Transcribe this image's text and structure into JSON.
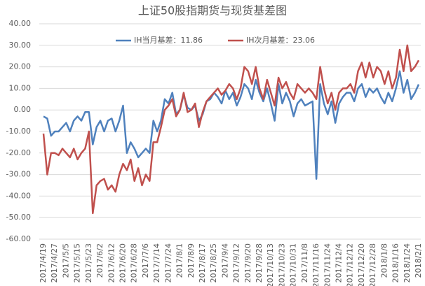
{
  "chart_data": {
    "type": "line",
    "title": "上证50股指期货与现货基差图",
    "categories": [
      "2017/4/19",
      null,
      null,
      "2017/4/27",
      null,
      null,
      "2017/5/5",
      null,
      null,
      "2017/5/15",
      null,
      null,
      "2017/5/23",
      null,
      null,
      "2017/6/2",
      null,
      null,
      "2017/6/12",
      null,
      null,
      "2017/6/20",
      null,
      null,
      "2017/6/28",
      null,
      null,
      "2017/7/6",
      null,
      null,
      "2017/7/14",
      null,
      null,
      "2017/7/24",
      null,
      null,
      "2017/8/1",
      null,
      null,
      "2017/8/9",
      null,
      null,
      "2017/8/17",
      null,
      null,
      "2017/8/25",
      null,
      null,
      "2017/9/4",
      null,
      null,
      "2017/9/12",
      null,
      null,
      "2017/9/20",
      null,
      null,
      "2017/9/28",
      null,
      null,
      "2017/10/13",
      null,
      null,
      "2017/10/23",
      null,
      null,
      "2017/10/31",
      null,
      null,
      "2017/11/8",
      null,
      null,
      "2017/11/16",
      null,
      null,
      "2017/11/24",
      null,
      null,
      "2017/12/4",
      null,
      null,
      "2017/12/12",
      null,
      null,
      "2017/12/20",
      null,
      null,
      "2017/12/28",
      null,
      null,
      "2018/1/8",
      null,
      null,
      "2018/1/16",
      null,
      null,
      "2018/1/24",
      null,
      null,
      "2018/2/1"
    ],
    "series": [
      {
        "name": "IH当月基差：11.86",
        "color": "#4f81bd",
        "values": [
          -3,
          -4,
          -12,
          -10,
          -10,
          -8,
          -6,
          -10,
          -5,
          -3,
          -5,
          -1,
          -1,
          -16,
          -8,
          -5,
          -10,
          -5,
          -4,
          -10,
          -5,
          2,
          -20,
          -15,
          -18,
          -22,
          -20,
          -18,
          -20,
          -5,
          -10,
          -5,
          5,
          3,
          8,
          -2,
          0,
          7,
          1,
          0,
          2,
          -5,
          -2,
          4,
          5,
          8,
          6,
          3,
          9,
          5,
          8,
          2,
          6,
          12,
          10,
          5,
          14,
          8,
          4,
          10,
          3,
          -5,
          12,
          3,
          8,
          4,
          -3,
          3,
          5,
          2,
          3,
          4,
          -32,
          12,
          3,
          -2,
          4,
          -6,
          3,
          6,
          8,
          8,
          4,
          10,
          12,
          6,
          10,
          8,
          10,
          6,
          3,
          8,
          4,
          10,
          18,
          8,
          14,
          5,
          8,
          11.86
        ]
      },
      {
        "name": "IH次月基差：23.06",
        "color": "#c0504d",
        "values": [
          -11,
          -30,
          -20,
          -20,
          -21,
          -18,
          -20,
          -22,
          -18,
          -23,
          -20,
          -18,
          -10,
          -48,
          -35,
          -33,
          -32,
          -37,
          -35,
          -38,
          -30,
          -25,
          -28,
          -23,
          -33,
          -27,
          -35,
          -30,
          -33,
          -15,
          -15,
          -8,
          0,
          2,
          5,
          -3,
          0,
          8,
          -1,
          0,
          3,
          -8,
          -1,
          4,
          6,
          8,
          10,
          7,
          9,
          12,
          10,
          5,
          10,
          20,
          18,
          12,
          20,
          10,
          5,
          14,
          8,
          2,
          15,
          10,
          13,
          8,
          5,
          12,
          10,
          8,
          10,
          8,
          5,
          20,
          10,
          3,
          8,
          0,
          8,
          10,
          10,
          12,
          8,
          18,
          22,
          15,
          22,
          15,
          20,
          18,
          12,
          18,
          10,
          15,
          28,
          18,
          30,
          18,
          20,
          23.06
        ]
      }
    ],
    "ylim": [
      -60,
      40
    ],
    "yticks": [
      {
        "value": -60,
        "label": "-60.00"
      },
      {
        "value": -50,
        "label": "-50.00"
      },
      {
        "value": -40,
        "label": "-40.00"
      },
      {
        "value": -30,
        "label": "-30.00"
      },
      {
        "value": -20,
        "label": "-20.00"
      },
      {
        "value": -10,
        "label": "-10.00"
      },
      {
        "value": 0,
        "label": "0.00"
      },
      {
        "value": 10,
        "label": "10.00"
      },
      {
        "value": 20,
        "label": "20.00"
      },
      {
        "value": 30,
        "label": "30.00"
      },
      {
        "value": 40,
        "label": "40.00"
      }
    ],
    "grid": true,
    "legend": "top"
  }
}
